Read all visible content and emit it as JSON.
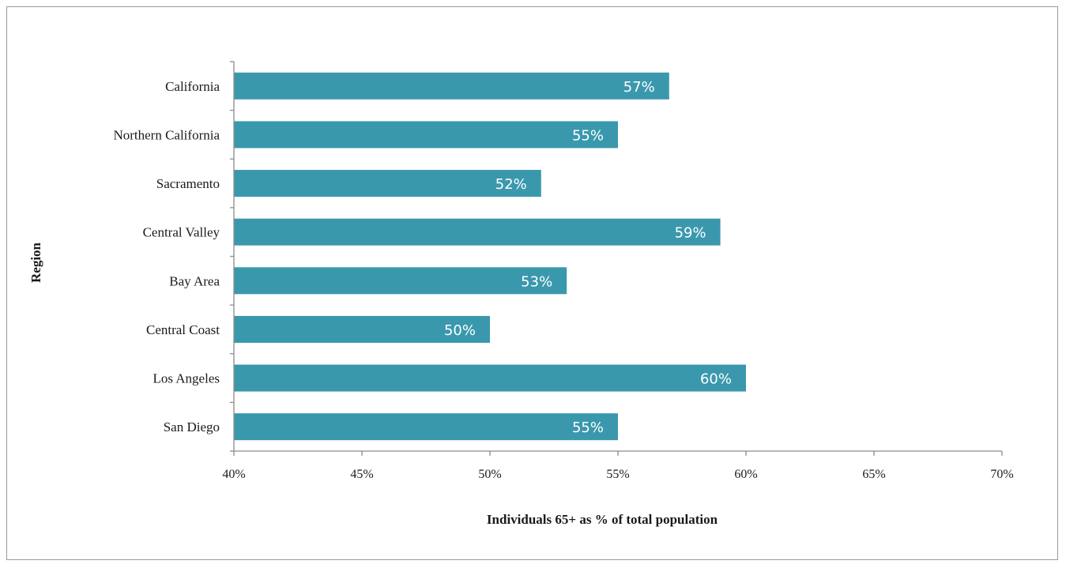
{
  "chart_data": {
    "type": "bar",
    "orientation": "horizontal",
    "categories": [
      "California",
      "Northern California",
      "Sacramento",
      "Central Valley",
      "Bay Area",
      "Central Coast",
      "Los Angeles",
      "San Diego"
    ],
    "values": [
      57,
      55,
      52,
      59,
      53,
      50,
      60,
      55
    ],
    "data_labels": [
      "57%",
      "55%",
      "52%",
      "59%",
      "53%",
      "50%",
      "60%",
      "55%"
    ],
    "xlabel": "Individuals 65+  as % of total population",
    "ylabel": "Region",
    "xlim": [
      40,
      70
    ],
    "x_ticks": [
      40,
      45,
      50,
      55,
      60,
      65,
      70
    ],
    "x_tick_labels": [
      "40%",
      "45%",
      "50%",
      "55%",
      "60%",
      "65%",
      "70%"
    ],
    "grid": false,
    "legend": false,
    "bar_color": "#3a98ad"
  }
}
